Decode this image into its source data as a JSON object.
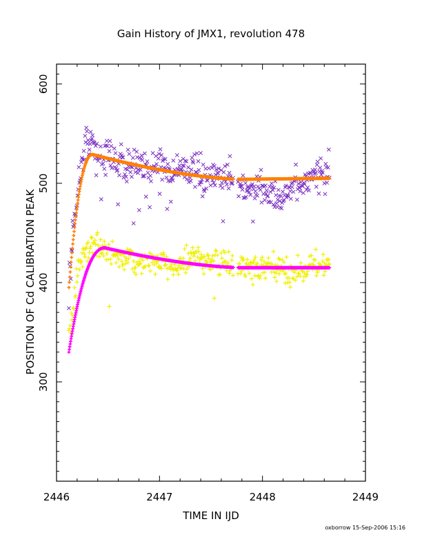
{
  "chart_data": {
    "type": "scatter",
    "title": "Gain History of JMX1, revolution 478",
    "xlabel": "TIME IN IJD",
    "ylabel": "POSITION OF Cd CALIBRATION PEAK",
    "xlim": [
      2446,
      2449
    ],
    "ylim": [
      200,
      620
    ],
    "xticks": [
      2446,
      2447,
      2448,
      2449
    ],
    "yticks": [
      300,
      400,
      500,
      600
    ],
    "xtick_labels": [
      "2446",
      "2447",
      "2448",
      "2449"
    ],
    "ytick_labels": [
      "300",
      "400",
      "500",
      "600"
    ],
    "x_range": [
      2446.12,
      2448.65
    ],
    "gap": [
      2447.72,
      2447.76
    ],
    "grid": false,
    "legend": "none",
    "series": [
      {
        "marker": "x",
        "color": "#7a2fc0",
        "fit_color": "#ff8000",
        "fit": {
          "start": 395,
          "peak_x": 2446.35,
          "peak": 529,
          "end_x": 2447.8,
          "end": 504,
          "final": 505
        },
        "scatter_noise": 12,
        "x": [
          2446.12,
          2446.16,
          2446.2,
          2446.24,
          2446.28,
          2446.3,
          2446.35,
          2446.4,
          2446.45,
          2446.5,
          2446.6,
          2446.7,
          2446.8,
          2446.9,
          2447.0,
          2447.1,
          2447.2,
          2447.3,
          2447.4,
          2447.5,
          2447.6,
          2447.7,
          2447.8,
          2447.9,
          2448.0,
          2448.1,
          2448.2,
          2448.3,
          2448.4,
          2448.5,
          2448.6
        ],
        "y": [
          397,
          450,
          490,
          518,
          540,
          544,
          540,
          530,
          524,
          527,
          522,
          518,
          513,
          516,
          521,
          512,
          518,
          513,
          507,
          505,
          506,
          510,
          495,
          492,
          494,
          490,
          484,
          495,
          500,
          508,
          512
        ]
      },
      {
        "marker": "+",
        "color": "#f0f000",
        "fit_color": "#ff00ff",
        "fit": {
          "start": 330,
          "peak_x": 2446.47,
          "peak": 435,
          "end_x": 2447.8,
          "end": 415,
          "final": 415
        },
        "scatter_noise": 9,
        "x": [
          2446.12,
          2446.16,
          2446.2,
          2446.25,
          2446.3,
          2446.35,
          2446.4,
          2446.45,
          2446.5,
          2446.6,
          2446.7,
          2446.8,
          2446.9,
          2447.0,
          2447.1,
          2447.2,
          2447.3,
          2447.4,
          2447.5,
          2447.6,
          2447.7,
          2447.8,
          2447.9,
          2448.0,
          2448.1,
          2448.2,
          2448.3,
          2448.4,
          2448.5,
          2448.6
        ],
        "y": [
          348,
          375,
          405,
          425,
          435,
          438,
          437,
          434,
          430,
          426,
          424,
          420,
          421,
          419,
          418,
          417,
          424,
          425,
          422,
          420,
          416,
          416,
          413,
          413,
          415,
          412,
          410,
          414,
          418,
          420
        ]
      }
    ]
  },
  "footer": "oxborrow 15-Sep-2006 15:16"
}
